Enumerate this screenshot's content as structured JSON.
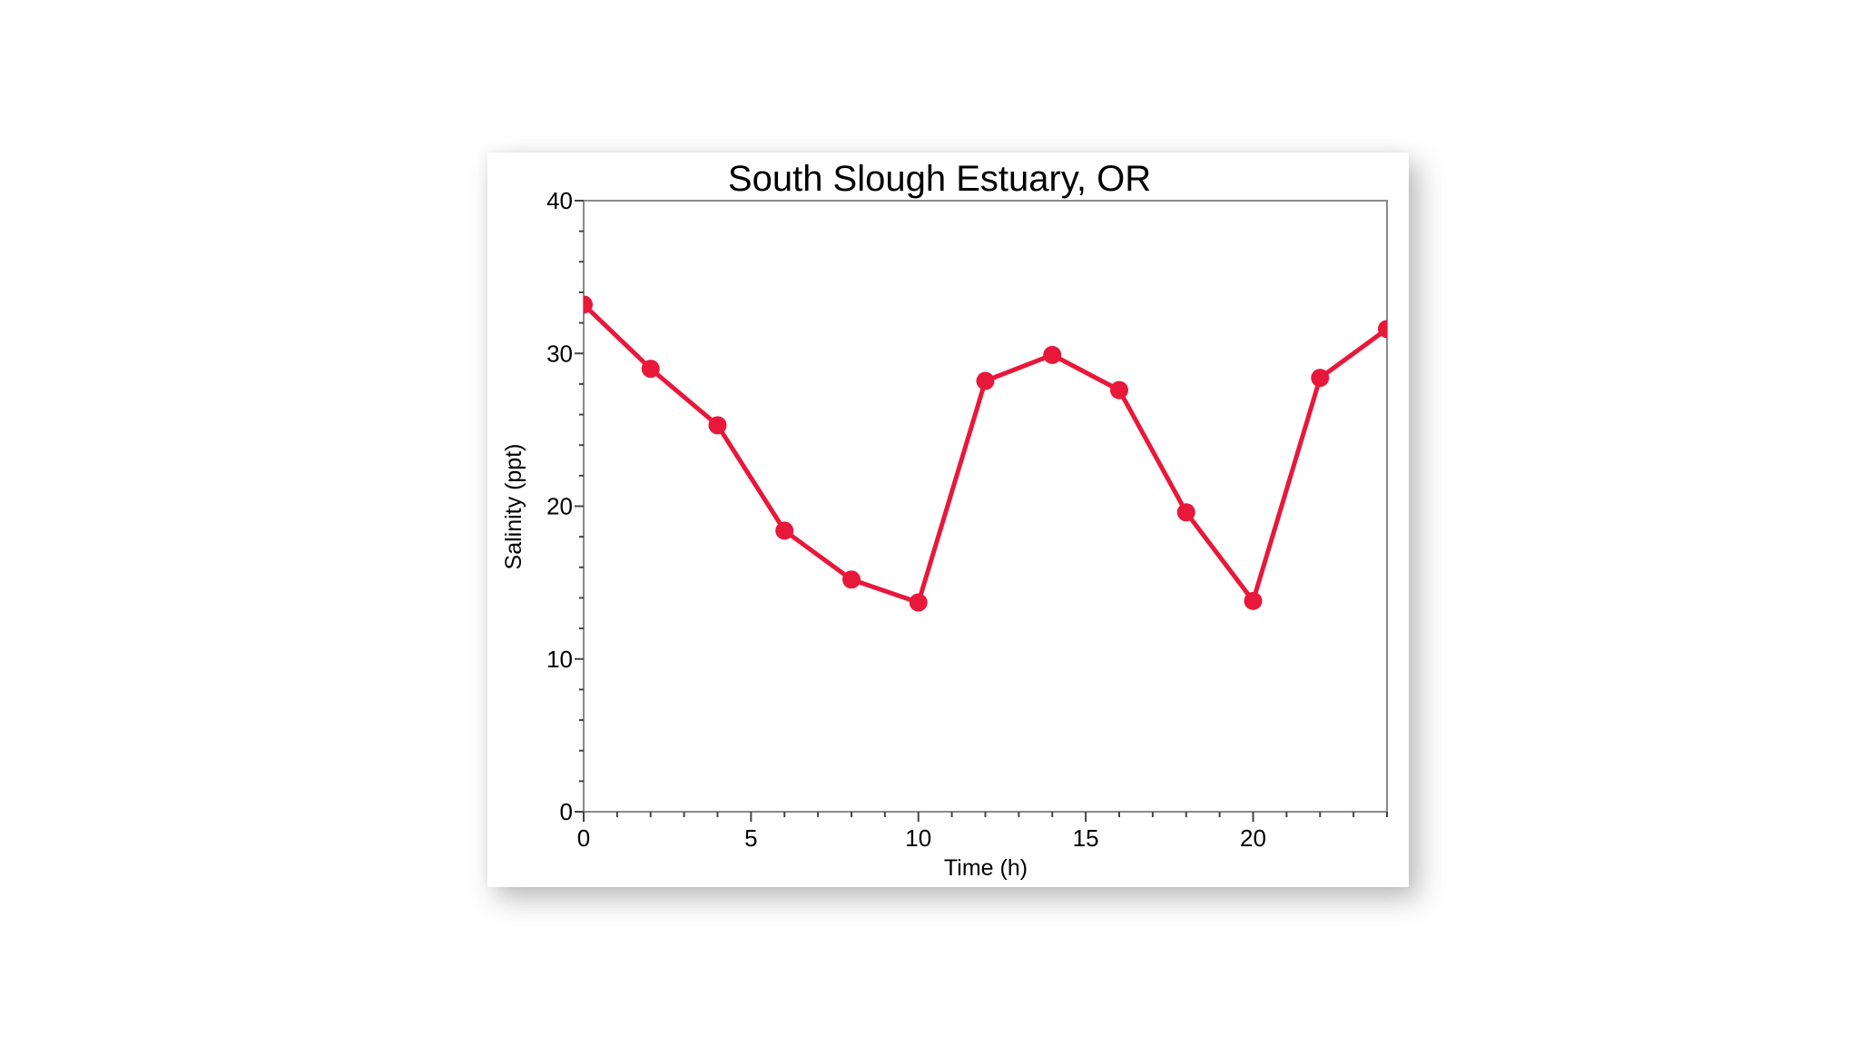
{
  "chart_data": {
    "type": "line",
    "title": "South Slough Estuary, OR",
    "xlabel": "Time (h)",
    "ylabel": "Salinity (ppt)",
    "xlim": [
      0,
      24
    ],
    "ylim": [
      0,
      40
    ],
    "x_ticks": [
      0,
      5,
      10,
      15,
      20
    ],
    "x_minor_step": 1,
    "y_ticks": [
      0,
      10,
      20,
      30,
      40
    ],
    "y_minor_step": 2,
    "grid": false,
    "legend": null,
    "series": [
      {
        "name": "Salinity",
        "color": "#E8183A",
        "marker": "circle",
        "x": [
          0,
          2,
          4,
          6,
          8,
          10,
          12,
          14,
          16,
          18,
          20,
          22,
          24
        ],
        "values": [
          33.2,
          29.0,
          25.3,
          18.4,
          15.2,
          13.7,
          28.2,
          29.9,
          27.6,
          19.6,
          13.8,
          28.4,
          31.6
        ]
      }
    ]
  },
  "colors": {
    "axis": "#8a8a8a",
    "series": "#E8183A"
  }
}
